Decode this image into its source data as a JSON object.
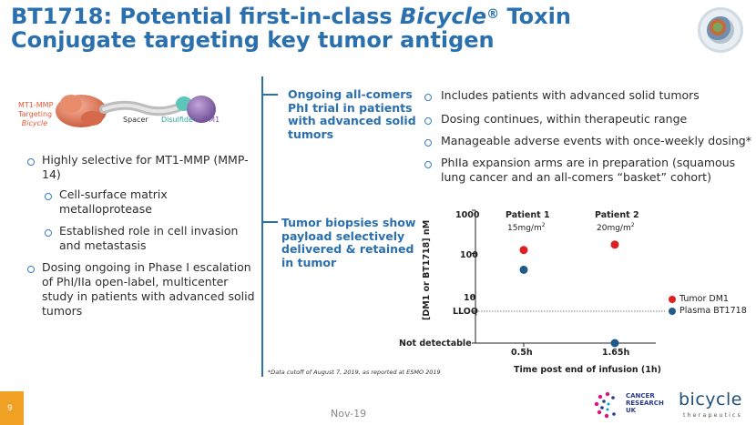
{
  "title": {
    "line1_pre": "BT1718: Potential first-in-class ",
    "line1_ital": "Bicycle",
    "line1_reg": "®",
    "line1_post": " Toxin",
    "line2": "Conjugate targeting key tumor antigen"
  },
  "molecule": {
    "mt1_label_1": "MT1-MMP",
    "mt1_label_2": "Targeting",
    "mt1_label_3": "Bicycle",
    "spacer": "Spacer",
    "disulfide": "Disulfide",
    "dm1": "DM1"
  },
  "left_bullets": [
    {
      "text1": "Highly selective for MT1-MMP (MMP-",
      "text2": "14)"
    },
    {
      "text1": "Cell-surface matrix",
      "text2": "metalloprotease"
    },
    {
      "text1": "Established role in cell invasion",
      "text2": "and metastasis"
    },
    {
      "text1": "Dosing ongoing in Phase I escalation",
      "text2": "of PhI/IIa open-label, multicenter",
      "text3": "study in patients with advanced solid",
      "text4": "tumors"
    }
  ],
  "center": {
    "block1": [
      "Ongoing all-comers",
      "PhI trial in patients",
      "with advanced solid",
      "tumors"
    ],
    "block2": [
      "Tumor biopsies show",
      "payload selectively",
      "delivered & retained",
      "in tumor"
    ]
  },
  "right_bullets": [
    [
      "Includes patients with advanced solid tumors"
    ],
    [
      "Dosing continues, within therapeutic range"
    ],
    [
      "Manageable adverse events with once-weekly dosing*"
    ],
    [
      "PhIIa expansion arms are in preparation (squamous",
      "lung cancer and an all-comers “basket” cohort)"
    ]
  ],
  "chart_data": {
    "type": "scatter",
    "ylabel": "[DM1 or BT1718] nM",
    "xlabel": "Time post end of infusion (1h)",
    "y_scale": "log",
    "y_ticks": [
      "1000",
      "100",
      "10",
      "LLOQ",
      "Not detectable"
    ],
    "x_ticks": [
      "0.5h",
      "1.65h"
    ],
    "annotations": [
      {
        "title": "Patient 1",
        "dose": "15mg/m",
        "sup": "2"
      },
      {
        "title": "Patient 2",
        "dose": "20mg/m",
        "sup": "2"
      }
    ],
    "series": [
      {
        "name": "Tumor DM1",
        "color": "#e02020",
        "points": [
          {
            "x": "0.5h",
            "y": 120
          },
          {
            "x": "1.65h",
            "y": 160
          }
        ]
      },
      {
        "name": "Plasma BT1718",
        "color": "#1f5b8a",
        "points": [
          {
            "x": "0.5h",
            "y": 42
          },
          {
            "x": "1.65h",
            "y": "Not detectable"
          }
        ]
      }
    ],
    "legend": "right"
  },
  "footnote": "*Data cutoff of August 7, 2019, as reported at ESMO 2019",
  "footer": {
    "page": "9",
    "date": "Nov-19",
    "cruk_1": "CANCER",
    "cruk_2": "RESEARCH",
    "cruk_3": "UK",
    "bicycle_logo": "bicycle",
    "bicycle_sub": "therapeutics"
  }
}
